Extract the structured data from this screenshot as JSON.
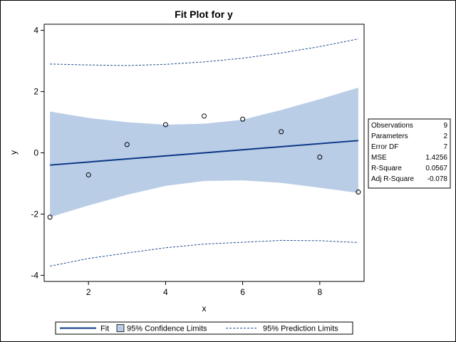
{
  "chart_data": {
    "type": "line",
    "title": "Fit Plot for y",
    "xlabel": "x",
    "ylabel": "y",
    "xlim": [
      0.85,
      9.15
    ],
    "ylim": [
      -4.2,
      4.2
    ],
    "xticks": [
      2,
      4,
      6,
      8
    ],
    "yticks": [
      -4,
      -2,
      0,
      2,
      4
    ],
    "grid": false,
    "observations": {
      "x": [
        1,
        2,
        3,
        4,
        5,
        6,
        7,
        8,
        9
      ],
      "y": [
        -2.1,
        -0.72,
        0.27,
        0.92,
        1.2,
        1.1,
        0.69,
        -0.14,
        -1.28
      ]
    },
    "fit": {
      "x": [
        1,
        9
      ],
      "y": [
        -0.4,
        0.4
      ]
    },
    "confidence_limits": {
      "x": [
        1,
        2,
        3,
        4,
        5,
        6,
        7,
        8,
        9
      ],
      "lower": [
        -2.1,
        -1.72,
        -1.37,
        -1.08,
        -0.92,
        -0.9,
        -0.98,
        -1.14,
        -1.31
      ],
      "upper": [
        1.35,
        1.14,
        1.0,
        0.92,
        0.95,
        1.08,
        1.4,
        1.75,
        2.13
      ]
    },
    "prediction_limits": {
      "x": [
        1,
        2,
        3,
        4,
        5,
        6,
        7,
        8,
        9
      ],
      "lower": [
        -3.7,
        -3.45,
        -3.27,
        -3.1,
        -2.98,
        -2.92,
        -2.86,
        -2.87,
        -2.93
      ],
      "upper": [
        2.9,
        2.87,
        2.85,
        2.89,
        2.97,
        3.09,
        3.26,
        3.47,
        3.72
      ]
    },
    "stats_table": [
      {
        "label": "Observations",
        "value": "9"
      },
      {
        "label": "Parameters",
        "value": "2"
      },
      {
        "label": "Error DF",
        "value": "7"
      },
      {
        "label": "MSE",
        "value": "1.4256"
      },
      {
        "label": "R-Square",
        "value": "0.0567"
      },
      {
        "label": "Adj R-Square",
        "value": "-0.078"
      }
    ],
    "legend": {
      "placement": "bottom",
      "items": [
        "Fit",
        "95% Confidence Limits",
        "95% Prediction Limits"
      ]
    },
    "colors": {
      "fit_line": "#0b3685",
      "confidence_band": "#b9cde6",
      "prediction_line": "#1f4e8c",
      "marker": "#000000"
    }
  }
}
